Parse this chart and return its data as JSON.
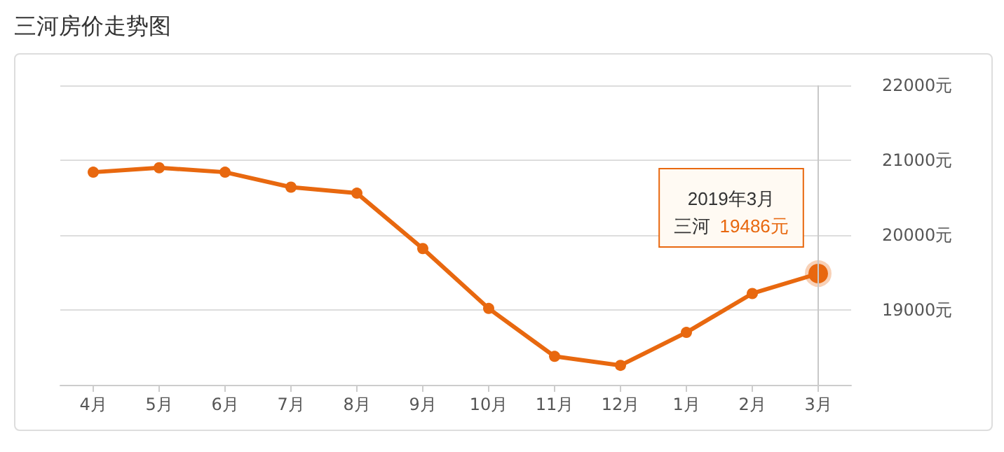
{
  "chart_data": {
    "type": "line",
    "title": "三河房价走势图",
    "categories": [
      "4月",
      "5月",
      "6月",
      "7月",
      "8月",
      "9月",
      "10月",
      "11月",
      "12月",
      "1月",
      "2月",
      "3月"
    ],
    "series": [
      {
        "name": "三河",
        "color": "#e8680f",
        "values": [
          20840,
          20900,
          20840,
          20640,
          20560,
          19820,
          19020,
          18380,
          18260,
          18700,
          19220,
          19486
        ],
        "value_labels": [
          null,
          null,
          null,
          null,
          null,
          null,
          null,
          null,
          null,
          null,
          null,
          "19486元"
        ]
      }
    ],
    "annotations": [
      "2019年3月"
    ],
    "ref_lines": [
      {
        "axis": "x",
        "value": "3月",
        "color": "#c8c8c8"
      }
    ],
    "ylim": [
      18000,
      22000
    ],
    "yticks": [
      {
        "value": 19000,
        "label": "19000元"
      },
      {
        "value": 20000,
        "label": "20000元"
      },
      {
        "value": 21000,
        "label": "21000元"
      },
      {
        "value": 22000,
        "label": "22000元"
      }
    ],
    "grid": "y",
    "marker": "circle",
    "line_style": "solid",
    "legend": false
  }
}
